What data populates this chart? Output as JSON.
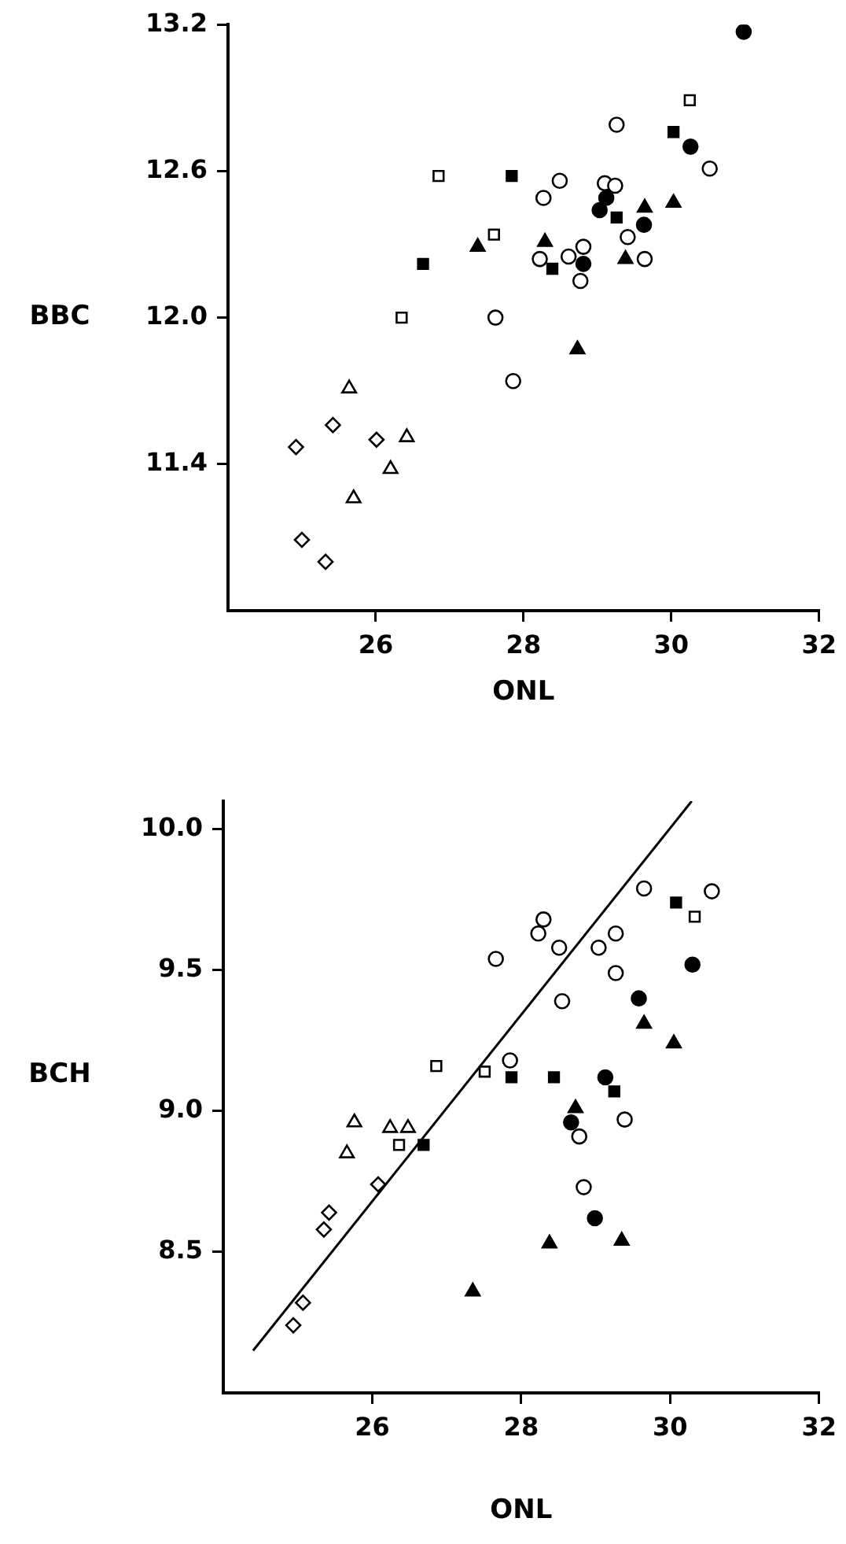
{
  "chart_data": [
    {
      "type": "scatter",
      "xlabel": "ONL",
      "ylabel": "BBC",
      "xlim": [
        24,
        32
      ],
      "ylim": [
        10.8,
        13.2
      ],
      "xticks": [
        26,
        28,
        30,
        32
      ],
      "yticks": [
        11.4,
        {
          "value": 12,
          "label": "12.0"
        },
        12.6,
        13.2
      ],
      "grid": false,
      "legend": false,
      "series": [
        {
          "color": "#ffffff",
          "marker": "diamond",
          "x": [
            24.92,
            25.42,
            26.01,
            25.0,
            25.32
          ],
          "values": [
            11.47,
            11.56,
            11.5,
            11.09,
            11.0
          ]
        },
        {
          "color": "#ffffff",
          "marker": "triangle",
          "x": [
            25.64,
            26.42,
            26.2,
            25.7
          ],
          "values": [
            11.71,
            11.51,
            11.38,
            11.26
          ]
        },
        {
          "color": "#ffffff",
          "marker": "square",
          "x": [
            26.35,
            26.85,
            27.6,
            30.25
          ],
          "values": [
            12.0,
            12.58,
            12.34,
            12.89
          ]
        },
        {
          "color": "#000000",
          "marker": "square",
          "x": [
            26.64,
            27.84,
            28.39,
            29.26,
            30.03
          ],
          "values": [
            12.22,
            12.58,
            12.2,
            12.41,
            12.76
          ]
        },
        {
          "color": "#000000",
          "marker": "triangle",
          "x": [
            27.38,
            28.29,
            28.73,
            29.38,
            29.64,
            30.03
          ],
          "values": [
            12.29,
            12.31,
            11.87,
            12.24,
            12.45,
            12.47
          ]
        },
        {
          "color": "#000000",
          "marker": "circle",
          "x": [
            30.98,
            30.26,
            29.12,
            29.03,
            29.63,
            28.81
          ],
          "values": [
            13.17,
            12.7,
            12.49,
            12.44,
            12.38,
            12.22
          ]
        },
        {
          "color": "#ffffff",
          "marker": "circle",
          "x": [
            27.62,
            27.86,
            28.27,
            28.22,
            28.49,
            29.26,
            29.1,
            29.24,
            28.61,
            28.81,
            28.77,
            29.41,
            29.64,
            30.52
          ],
          "values": [
            12.0,
            11.74,
            12.49,
            12.24,
            12.56,
            12.79,
            12.55,
            12.54,
            12.25,
            12.29,
            12.15,
            12.33,
            12.24,
            12.61
          ]
        }
      ]
    },
    {
      "type": "scatter",
      "xlabel": "ONL",
      "ylabel": "BCH",
      "xlim": [
        24,
        32
      ],
      "ylim": [
        8.0,
        10.1
      ],
      "xticks": [
        26,
        28,
        30,
        32
      ],
      "yticks": [
        8.5,
        {
          "value": 9,
          "label": "9.0"
        },
        9.5,
        {
          "value": 10,
          "label": "10.0"
        }
      ],
      "grid": false,
      "legend": false,
      "series": [
        {
          "color": "#ffffff",
          "marker": "diamond",
          "x": [
            24.94,
            25.07,
            25.35,
            25.42,
            26.08
          ],
          "values": [
            8.24,
            8.32,
            8.58,
            8.64,
            8.74
          ]
        },
        {
          "color": "#ffffff",
          "marker": "triangle",
          "x": [
            25.66,
            25.76,
            26.24,
            26.48
          ],
          "values": [
            8.85,
            8.96,
            8.94,
            8.94
          ]
        },
        {
          "color": "#ffffff",
          "marker": "square",
          "x": [
            26.36,
            26.86,
            27.51,
            30.33
          ],
          "values": [
            8.88,
            9.16,
            9.14,
            9.69
          ]
        },
        {
          "color": "#000000",
          "marker": "square",
          "x": [
            26.69,
            27.87,
            28.44,
            29.25,
            30.08
          ],
          "values": [
            8.88,
            9.12,
            9.12,
            9.07,
            9.74
          ]
        },
        {
          "color": "#000000",
          "marker": "triangle",
          "x": [
            27.35,
            28.38,
            29.35,
            28.73,
            29.65,
            30.05
          ],
          "values": [
            8.36,
            8.53,
            8.54,
            9.01,
            9.31,
            9.24
          ]
        },
        {
          "color": "#000000",
          "marker": "circle",
          "x": [
            28.67,
            29.13,
            29.58,
            30.3,
            28.99
          ],
          "values": [
            8.96,
            9.12,
            9.4,
            9.52,
            8.62
          ]
        },
        {
          "color": "#ffffff",
          "marker": "circle",
          "x": [
            27.66,
            27.85,
            28.23,
            28.3,
            28.51,
            29.04,
            29.27,
            29.27,
            28.55,
            29.65,
            30.56,
            29.39,
            28.78,
            28.84
          ],
          "values": [
            9.54,
            9.18,
            9.63,
            9.68,
            9.58,
            9.58,
            9.63,
            9.49,
            9.39,
            9.79,
            9.78,
            8.97,
            8.91,
            8.73
          ]
        },
        {
          "type": "line",
          "color": "#000000",
          "marker": "none",
          "line_style": "solid",
          "x": [
            24.4,
            30.29
          ],
          "values": [
            8.15,
            10.1
          ]
        }
      ]
    }
  ]
}
